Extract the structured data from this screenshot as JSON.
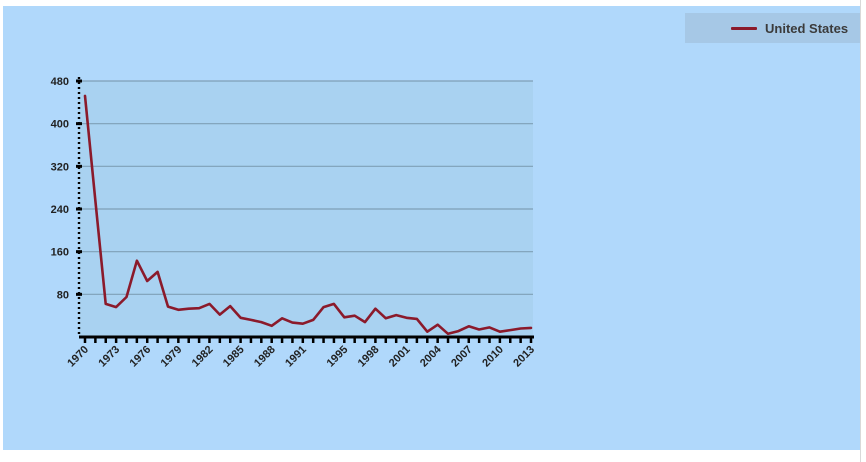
{
  "chart_data": {
    "type": "line",
    "title": "",
    "xlabel": "",
    "ylabel": "",
    "x": [
      1970,
      1971,
      1972,
      1973,
      1974,
      1975,
      1976,
      1977,
      1978,
      1979,
      1980,
      1981,
      1982,
      1983,
      1984,
      1985,
      1986,
      1987,
      1988,
      1989,
      1990,
      1991,
      1992,
      1993,
      1994,
      1995,
      1996,
      1997,
      1998,
      1999,
      2000,
      2001,
      2002,
      2003,
      2004,
      2005,
      2006,
      2007,
      2008,
      2009,
      2010,
      2011,
      2012,
      2013
    ],
    "series": [
      {
        "name": "United States",
        "color": "#8b1a2b",
        "values": [
          452,
          255,
          62,
          56,
          75,
          143,
          105,
          122,
          57,
          51,
          53,
          54,
          62,
          42,
          58,
          36,
          32,
          28,
          21,
          35,
          27,
          25,
          32,
          56,
          62,
          37,
          40,
          28,
          53,
          35,
          41,
          36,
          34,
          10,
          23,
          6,
          11,
          20,
          14,
          18,
          10,
          13,
          16,
          17
        ]
      }
    ],
    "xlim": [
      1970,
      2013
    ],
    "ylim": [
      0,
      480
    ],
    "y_ticks": [
      80,
      160,
      240,
      320,
      400,
      480
    ],
    "x_tick_labels": [
      "1970",
      "1973",
      "1976",
      "1979",
      "1982",
      "1985",
      "1988",
      "1991",
      "1995",
      "1998",
      "2001",
      "2004",
      "2007",
      "2010",
      "2013"
    ],
    "grid": true,
    "legend_position": "top-right",
    "plot_bg": "#a9d2f1",
    "frame_bg": "#b0d8fb",
    "grid_color": "#7f9fb6"
  }
}
